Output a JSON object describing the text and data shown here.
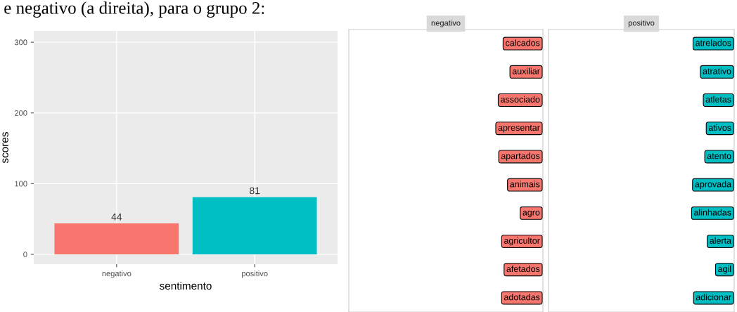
{
  "chart_data": [
    {
      "type": "bar",
      "xlabel": "sentimento",
      "ylabel": "scores",
      "categories": [
        "negativo",
        "positivo"
      ],
      "values": [
        44,
        81
      ],
      "colors": [
        "#f8766d",
        "#00bfc4"
      ],
      "ylim": [
        -14,
        316
      ],
      "yticks": [
        0,
        100,
        200,
        300
      ],
      "grid": true,
      "data_labels": true,
      "legend": false,
      "annotations": [
        "e negativo (a direita), para o grupo 2:"
      ]
    },
    {
      "type": "other",
      "title": "negativo",
      "color": "#f8766d",
      "annotations": [
        "calcados",
        "auxiliar",
        "associado",
        "apresentar",
        "apartados",
        "animais",
        "agro",
        "agricultor",
        "afetados",
        "adotadas"
      ]
    },
    {
      "type": "other",
      "title": "positivo",
      "color": "#00bfc4",
      "annotations": [
        "atrelados",
        "atrativo",
        "atletas",
        "ativos",
        "atento",
        "aprovada",
        "alinhadas",
        "alerta",
        "agil",
        "adicionar"
      ]
    }
  ]
}
